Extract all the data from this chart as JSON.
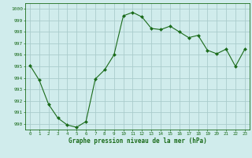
{
  "x": [
    0,
    1,
    2,
    3,
    4,
    5,
    6,
    7,
    8,
    9,
    10,
    11,
    12,
    13,
    14,
    15,
    16,
    17,
    18,
    19,
    20,
    21,
    22,
    23
  ],
  "y": [
    995.1,
    993.8,
    991.7,
    990.5,
    989.9,
    989.7,
    990.2,
    993.9,
    994.7,
    996.0,
    999.4,
    999.7,
    999.3,
    998.3,
    998.2,
    998.5,
    998.0,
    997.5,
    997.7,
    996.4,
    996.1,
    996.5,
    995.0,
    996.5
  ],
  "line_color": "#1a6b1a",
  "marker": "D",
  "marker_size": 2.0,
  "bg_color": "#d0ecec",
  "grid_color": "#aacccc",
  "xlabel": "Graphe pression niveau de la mer (hPa)",
  "xlabel_color": "#1a6b1a",
  "tick_color": "#1a6b1a",
  "ylim": [
    989.5,
    1000.5
  ],
  "yticks": [
    990,
    991,
    992,
    993,
    994,
    995,
    996,
    997,
    998,
    999,
    1000
  ],
  "xlim": [
    -0.5,
    23.5
  ],
  "xticks": [
    0,
    1,
    2,
    3,
    4,
    5,
    6,
    7,
    8,
    9,
    10,
    11,
    12,
    13,
    14,
    15,
    16,
    17,
    18,
    19,
    20,
    21,
    22,
    23
  ]
}
